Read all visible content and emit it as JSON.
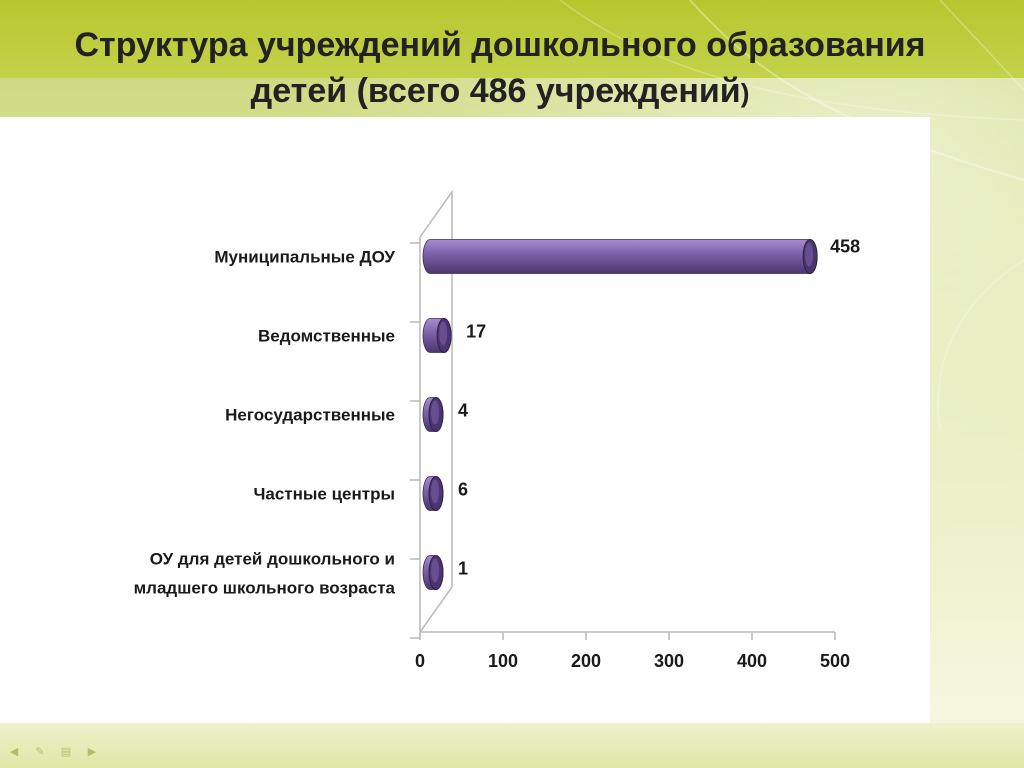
{
  "slide": {
    "title_line1": "Структура учреждений дошкольного образования",
    "title_line2_main": "детей (всего 486 учреждений",
    "title_line2_paren": ")"
  },
  "colors": {
    "accent": "#b7c62e",
    "bar_fill": "#7b5fa6",
    "bar_dark": "#4b3570",
    "bar_light": "#a68ccf"
  },
  "icons": [
    "previous-icon",
    "pen-icon",
    "slides-menu-icon",
    "next-icon"
  ],
  "chart_data": {
    "type": "bar",
    "orientation": "horizontal",
    "title": "",
    "xlabel": "",
    "ylabel": "",
    "categories": [
      [
        "Муниципальные ДОУ"
      ],
      [
        "Ведомственные"
      ],
      [
        "Негосударственные"
      ],
      [
        "Частные центры"
      ],
      [
        "ОУ для детей дошкольного и",
        "младшего школьного возраста"
      ]
    ],
    "values": [
      458,
      17,
      4,
      6,
      1
    ],
    "value_labels": [
      "458",
      "17",
      "4",
      "6",
      "1"
    ],
    "xlim": [
      0,
      500
    ],
    "xticks": [
      0,
      100,
      200,
      300,
      400,
      500
    ],
    "grid": false,
    "legend": "none",
    "style": "3d-cylinder"
  }
}
